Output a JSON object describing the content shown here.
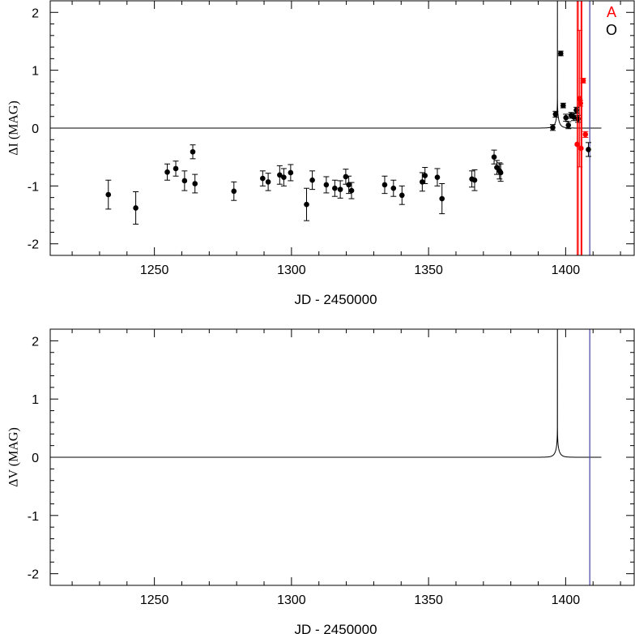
{
  "chart_data": [
    {
      "type": "scatter",
      "xlabel": "JD - 2450000",
      "ylabel": "ΔI (MAG)",
      "xlim": [
        1212,
        1425
      ],
      "ylim": [
        -2.2,
        2.2
      ],
      "xticks": [
        1250,
        1300,
        1350,
        1400
      ],
      "yticks": [
        -2,
        -1,
        0,
        1,
        2
      ],
      "legend_position": "top-right",
      "legend": [
        {
          "label": "A",
          "color": "#ff0000"
        },
        {
          "label": "O",
          "color": "#000000"
        }
      ],
      "series": [
        {
          "name": "O",
          "color": "#000000",
          "points": [
            {
              "x": 1233.2,
              "y": -1.15,
              "err": 0.25
            },
            {
              "x": 1243.2,
              "y": -1.38,
              "err": 0.28
            },
            {
              "x": 1254.7,
              "y": -0.76,
              "err": 0.14
            },
            {
              "x": 1257.8,
              "y": -0.7,
              "err": 0.13
            },
            {
              "x": 1261.0,
              "y": -0.91,
              "err": 0.17
            },
            {
              "x": 1264.0,
              "y": -0.41,
              "err": 0.12
            },
            {
              "x": 1264.8,
              "y": -0.96,
              "err": 0.16
            },
            {
              "x": 1279.0,
              "y": -1.09,
              "err": 0.16
            },
            {
              "x": 1289.5,
              "y": -0.87,
              "err": 0.13
            },
            {
              "x": 1291.5,
              "y": -0.93,
              "err": 0.15
            },
            {
              "x": 1295.7,
              "y": -0.81,
              "err": 0.16
            },
            {
              "x": 1297.2,
              "y": -0.85,
              "err": 0.15
            },
            {
              "x": 1299.7,
              "y": -0.77,
              "err": 0.14
            },
            {
              "x": 1305.5,
              "y": -1.32,
              "err": 0.28
            },
            {
              "x": 1307.6,
              "y": -0.9,
              "err": 0.16
            },
            {
              "x": 1312.7,
              "y": -0.98,
              "err": 0.14
            },
            {
              "x": 1315.8,
              "y": -1.04,
              "err": 0.14
            },
            {
              "x": 1317.8,
              "y": -1.06,
              "err": 0.15
            },
            {
              "x": 1319.8,
              "y": -0.84,
              "err": 0.13
            },
            {
              "x": 1320.9,
              "y": -0.98,
              "err": 0.15
            },
            {
              "x": 1321.9,
              "y": -1.08,
              "err": 0.14
            },
            {
              "x": 1334.0,
              "y": -0.98,
              "err": 0.15
            },
            {
              "x": 1337.2,
              "y": -1.04,
              "err": 0.14
            },
            {
              "x": 1340.3,
              "y": -1.16,
              "err": 0.16
            },
            {
              "x": 1347.7,
              "y": -0.93,
              "err": 0.16
            },
            {
              "x": 1348.7,
              "y": -0.82,
              "err": 0.14
            },
            {
              "x": 1353.2,
              "y": -0.85,
              "err": 0.15
            },
            {
              "x": 1354.9,
              "y": -1.22,
              "err": 0.26
            },
            {
              "x": 1365.8,
              "y": -0.88,
              "err": 0.14
            },
            {
              "x": 1366.8,
              "y": -0.9,
              "err": 0.18
            },
            {
              "x": 1373.9,
              "y": -0.5,
              "err": 0.12
            },
            {
              "x": 1374.9,
              "y": -0.68,
              "err": 0.12
            },
            {
              "x": 1375.9,
              "y": -0.74,
              "err": 0.14
            },
            {
              "x": 1376.3,
              "y": -0.77,
              "err": 0.15
            },
            {
              "x": 1395.3,
              "y": 0.01,
              "err": 0.05
            },
            {
              "x": 1396.3,
              "y": 0.24,
              "err": 0.05
            },
            {
              "x": 1398.2,
              "y": 1.29,
              "err": 0.04
            },
            {
              "x": 1399.1,
              "y": 0.39,
              "err": 0.04
            },
            {
              "x": 1400.1,
              "y": 0.18,
              "err": 0.06
            },
            {
              "x": 1401.0,
              "y": 0.05,
              "err": 0.06
            },
            {
              "x": 1402.0,
              "y": 0.22,
              "err": 0.05
            },
            {
              "x": 1403.0,
              "y": 0.19,
              "err": 0.06
            },
            {
              "x": 1403.9,
              "y": 0.31,
              "err": 0.05
            },
            {
              "x": 1404.5,
              "y": 0.16,
              "err": 0.06
            },
            {
              "x": 1408.3,
              "y": -0.37,
              "err": 0.12
            }
          ]
        },
        {
          "name": "A",
          "color": "#ff0000",
          "points": [
            {
              "x": 1404.2,
              "y": -0.28,
              "err": 3.0
            },
            {
              "x": 1405.1,
              "y": 0.51,
              "err": 1.18
            },
            {
              "x": 1405.4,
              "y": 0.43,
              "err": 0.05
            },
            {
              "x": 1405.6,
              "y": -0.35,
              "err": 3.0
            },
            {
              "x": 1406.4,
              "y": 0.82,
              "err": 0.04
            },
            {
              "x": 1407.2,
              "y": -0.11,
              "err": 0.05
            }
          ]
        }
      ],
      "model_curve": {
        "t0": 1397.0,
        "amp": 0.9,
        "tau": 1.6,
        "x_end": 1414
      },
      "vertical_lines": [
        {
          "x": 1404.6,
          "color": "#ff0000"
        },
        {
          "x": 1405.9,
          "color": "#ff0000"
        },
        {
          "x": 1408.8,
          "color": "#4040a0"
        }
      ]
    },
    {
      "type": "line",
      "xlabel": "JD - 2450000",
      "ylabel": "ΔV (MAG)",
      "xlim": [
        1212,
        1425
      ],
      "ylim": [
        -2.2,
        2.2
      ],
      "xticks": [
        1250,
        1300,
        1350,
        1400
      ],
      "yticks": [
        -2,
        -1,
        0,
        1,
        2
      ],
      "model_curve": {
        "t0": 1397.0,
        "amp": 0.9,
        "tau": 1.6,
        "x_end": 1414
      },
      "vertical_lines": [
        {
          "x": 1408.8,
          "color": "#4040a0"
        }
      ]
    }
  ]
}
